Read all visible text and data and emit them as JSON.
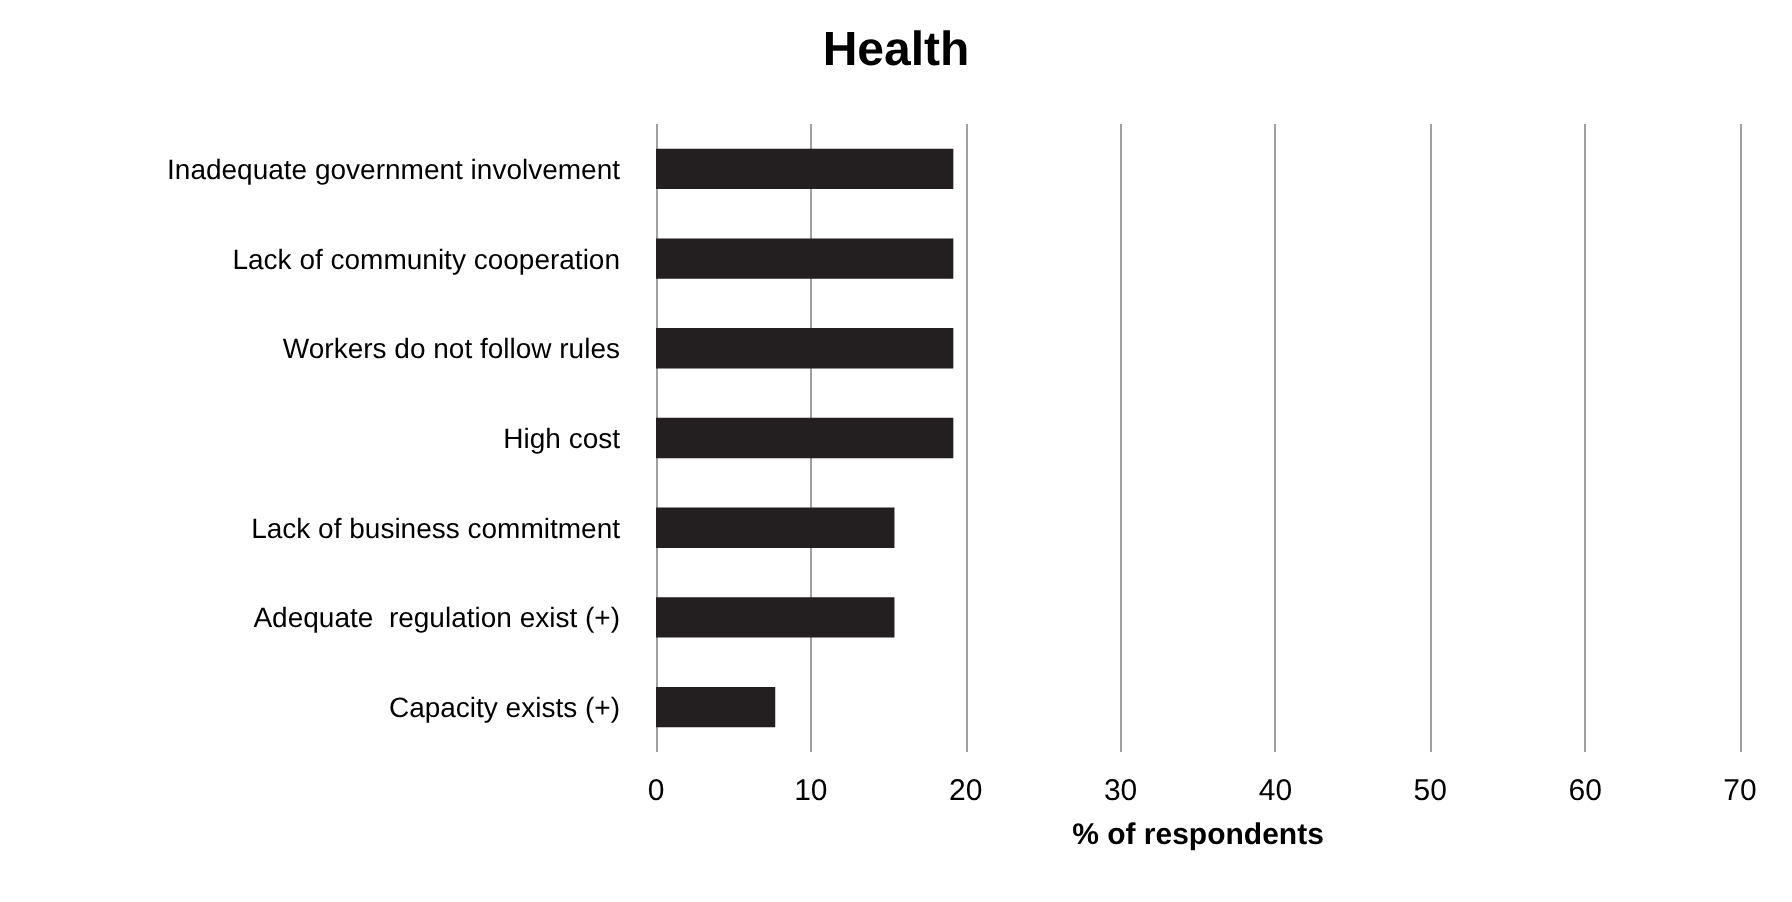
{
  "chart_data": {
    "type": "bar",
    "orientation": "horizontal",
    "title": "Health",
    "xlabel": "% of respondents",
    "categories": [
      "Inadequate government involvement",
      "Lack of community cooperation",
      "Workers do not follow rules",
      "High cost",
      "Lack of business commitment",
      "Adequate  regulation exist (+)",
      "Capacity exists (+)"
    ],
    "values": [
      19.2,
      19.2,
      19.2,
      19.2,
      15.4,
      15.4,
      7.7
    ],
    "color": "#231f20",
    "xlim": [
      0,
      70
    ],
    "xticks": [
      0,
      10,
      20,
      30,
      40,
      50,
      60,
      70
    ],
    "grid": "x"
  }
}
